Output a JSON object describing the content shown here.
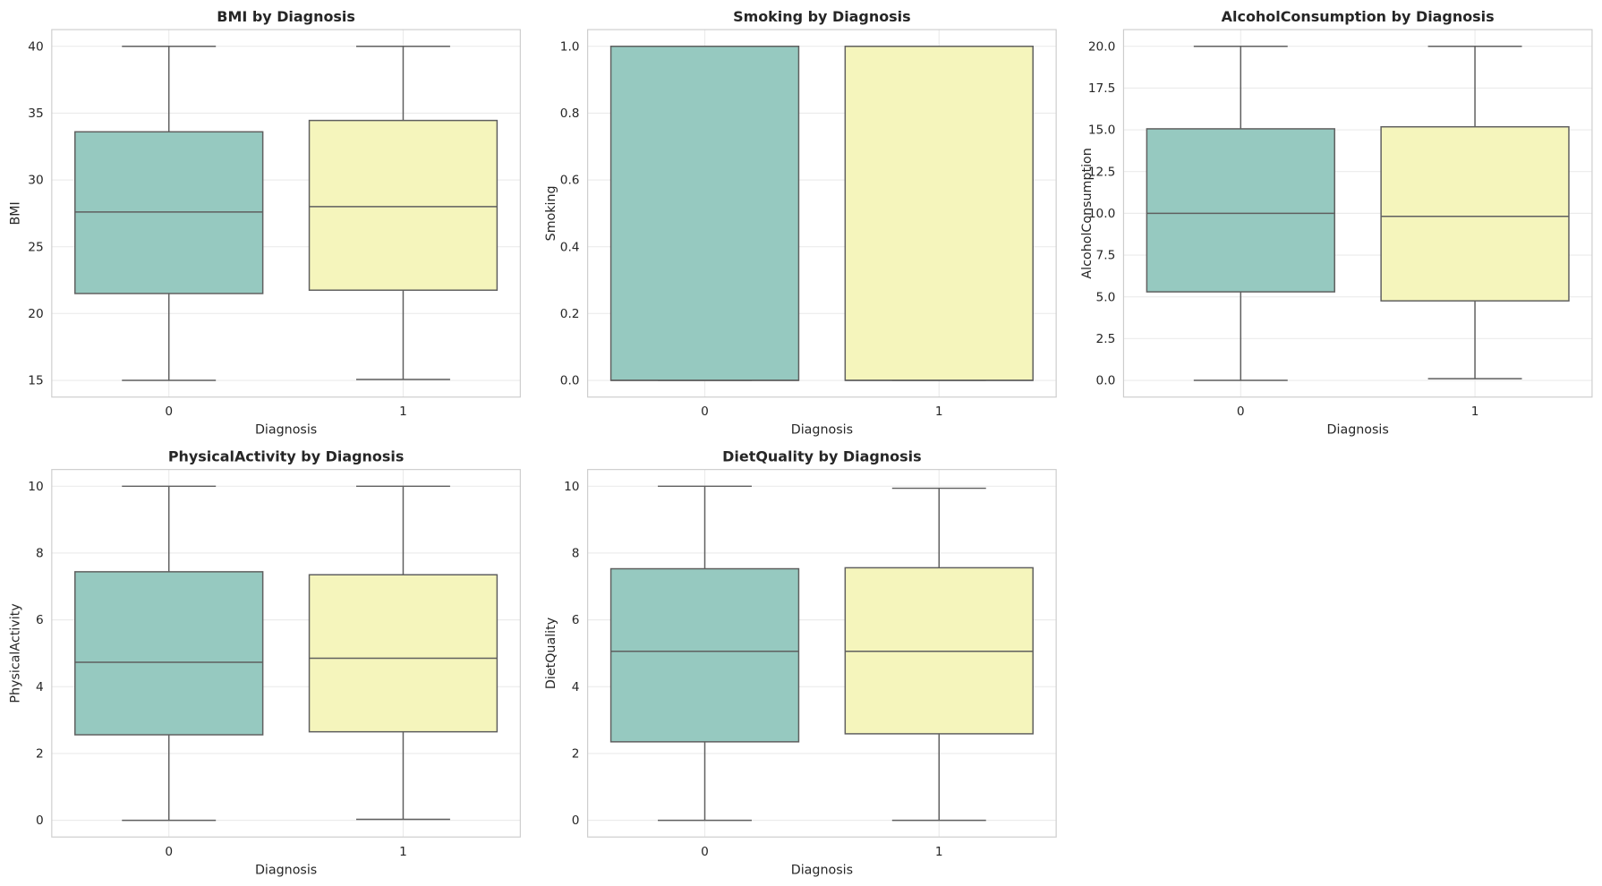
{
  "colors": {
    "group0": "#96c9c0",
    "group1": "#f5f5bc",
    "line": "#5f5f5f",
    "grid": "#ebebeb",
    "spine": "#cccccc"
  },
  "chart_data": [
    {
      "type": "box",
      "title": "BMI by Diagnosis",
      "xlabel": "Diagnosis",
      "ylabel": "BMI",
      "categories": [
        "0",
        "1"
      ],
      "ylim": [
        13.75,
        41.25
      ],
      "yticks": [
        15,
        20,
        25,
        30,
        35,
        40
      ],
      "ytick_labels": [
        "15",
        "20",
        "25",
        "30",
        "35",
        "40"
      ],
      "grid": true,
      "boxes": [
        {
          "min": 15.0,
          "q1": 21.5,
          "median": 27.6,
          "q3": 33.6,
          "max": 40.0
        },
        {
          "min": 15.07,
          "q1": 21.75,
          "median": 28.0,
          "q3": 34.45,
          "max": 40.0
        }
      ]
    },
    {
      "type": "box",
      "title": "Smoking by Diagnosis",
      "xlabel": "Diagnosis",
      "ylabel": "Smoking",
      "categories": [
        "0",
        "1"
      ],
      "ylim": [
        -0.05,
        1.05
      ],
      "yticks": [
        0,
        0.2,
        0.4,
        0.6,
        0.8,
        1.0
      ],
      "ytick_labels": [
        "0.0",
        "0.2",
        "0.4",
        "0.6",
        "0.8",
        "1.0"
      ],
      "grid": true,
      "boxes": [
        {
          "min": 0,
          "q1": 0,
          "median": 0,
          "q3": 1,
          "max": 1
        },
        {
          "min": 0,
          "q1": 0,
          "median": 0,
          "q3": 1,
          "max": 1
        }
      ]
    },
    {
      "type": "box",
      "title": "AlcoholConsumption by Diagnosis",
      "xlabel": "Diagnosis",
      "ylabel": "AlcoholConsumption",
      "categories": [
        "0",
        "1"
      ],
      "ylim": [
        -1,
        21
      ],
      "yticks": [
        0,
        2.5,
        5,
        7.5,
        10,
        12.5,
        15,
        17.5,
        20
      ],
      "ytick_labels": [
        "0.0",
        "2.5",
        "5.0",
        "7.5",
        "10.0",
        "12.5",
        "15.0",
        "17.5",
        "20.0"
      ],
      "grid": true,
      "boxes": [
        {
          "min": 0.0,
          "q1": 5.3,
          "median": 10.0,
          "q3": 15.06,
          "max": 20.0
        },
        {
          "min": 0.1,
          "q1": 4.76,
          "median": 9.82,
          "q3": 15.18,
          "max": 20.0
        }
      ]
    },
    {
      "type": "box",
      "title": "PhysicalActivity by Diagnosis",
      "xlabel": "Diagnosis",
      "ylabel": "PhysicalActivity",
      "categories": [
        "0",
        "1"
      ],
      "ylim": [
        -0.5,
        10.5
      ],
      "yticks": [
        0,
        2,
        4,
        6,
        8,
        10
      ],
      "ytick_labels": [
        "0",
        "2",
        "4",
        "6",
        "8",
        "10"
      ],
      "grid": true,
      "boxes": [
        {
          "min": 0.0,
          "q1": 2.56,
          "median": 4.73,
          "q3": 7.44,
          "max": 10.0
        },
        {
          "min": 0.03,
          "q1": 2.65,
          "median": 4.85,
          "q3": 7.35,
          "max": 10.0
        }
      ]
    },
    {
      "type": "box",
      "title": "DietQuality by Diagnosis",
      "xlabel": "Diagnosis",
      "ylabel": "DietQuality",
      "categories": [
        "0",
        "1"
      ],
      "ylim": [
        -0.5,
        10.5
      ],
      "yticks": [
        0,
        2,
        4,
        6,
        8,
        10
      ],
      "ytick_labels": [
        "0",
        "2",
        "4",
        "6",
        "8",
        "10"
      ],
      "grid": true,
      "boxes": [
        {
          "min": 0.0,
          "q1": 2.35,
          "median": 5.06,
          "q3": 7.53,
          "max": 10.0
        },
        {
          "min": 0.0,
          "q1": 2.59,
          "median": 5.06,
          "q3": 7.56,
          "max": 9.94
        }
      ]
    }
  ]
}
